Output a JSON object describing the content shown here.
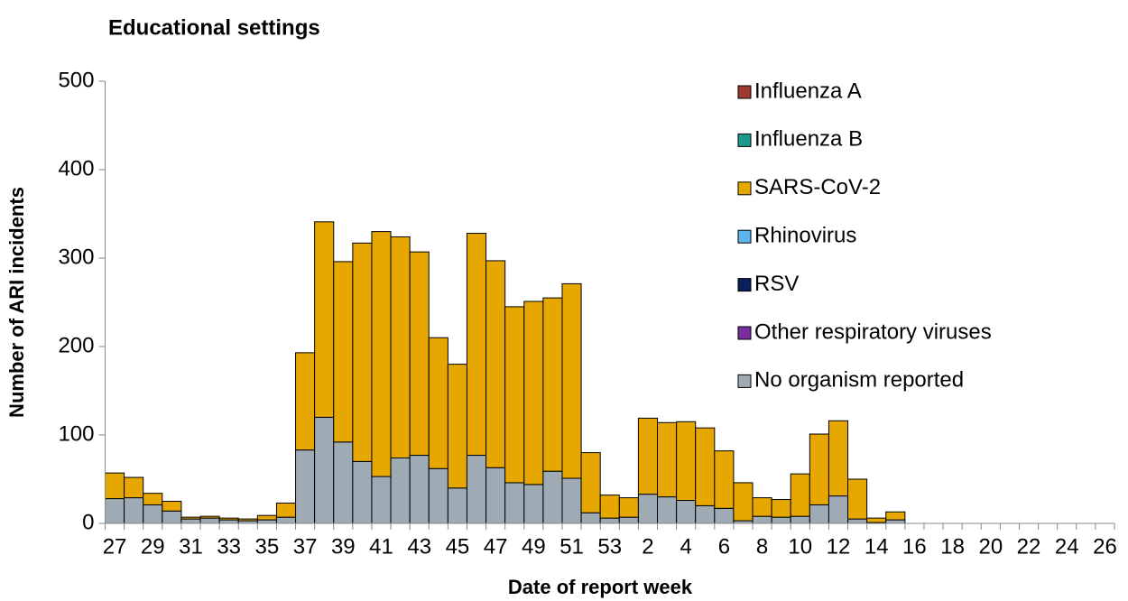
{
  "chart_data": {
    "type": "stacked_bar",
    "title": "Educational settings",
    "y_label": "Number of ARI incidents",
    "x_label": "Date of report week",
    "categories": [
      "27",
      null,
      "29",
      null,
      "31",
      null,
      "33",
      null,
      "35",
      null,
      "37",
      null,
      "39",
      null,
      "41",
      null,
      "43",
      null,
      "45",
      null,
      "47",
      null,
      "49",
      null,
      "51",
      null,
      "53",
      null,
      "2",
      null,
      "4",
      null,
      "6",
      null,
      "8",
      null,
      "10",
      null,
      "12",
      null,
      "14",
      null,
      "16",
      null,
      "18",
      null,
      "20",
      null,
      "22",
      null,
      "24",
      null,
      "26"
    ],
    "ylim": [
      0,
      500
    ],
    "yticks": [
      0,
      100,
      200,
      300,
      400,
      500
    ],
    "grid": false,
    "legend": "right",
    "series": [
      {
        "name": "Influenza A",
        "color": "#9e3a33",
        "values": [
          0,
          0,
          0,
          0,
          0,
          0,
          0,
          0,
          0,
          0,
          0,
          0,
          0,
          0,
          0,
          0,
          0,
          0,
          0,
          0,
          0,
          0,
          0,
          0,
          0,
          0,
          0,
          0,
          0,
          0,
          0,
          0,
          0,
          0,
          0,
          0,
          0,
          0,
          0,
          0,
          0,
          0,
          null,
          null,
          null,
          null,
          null,
          null,
          null,
          null,
          null,
          null,
          null
        ]
      },
      {
        "name": "Influenza B",
        "color": "#1c9a8c",
        "values": [
          0,
          0,
          0,
          0,
          0,
          0,
          0,
          0,
          0,
          0,
          0,
          0,
          0,
          0,
          0,
          0,
          0,
          0,
          0,
          0,
          0,
          0,
          0,
          0,
          0,
          0,
          0,
          0,
          0,
          0,
          0,
          0,
          0,
          0,
          0,
          0,
          0,
          0,
          0,
          0,
          0,
          0,
          null,
          null,
          null,
          null,
          null,
          null,
          null,
          null,
          null,
          null,
          null
        ]
      },
      {
        "name": "SARS-CoV-2",
        "color": "#e6a700",
        "values": [
          29,
          23,
          13,
          11,
          2,
          2,
          2,
          2,
          5,
          16,
          110,
          221,
          204,
          247,
          277,
          250,
          230,
          148,
          140,
          251,
          234,
          199,
          207,
          196,
          220,
          68,
          26,
          22,
          86,
          84,
          89,
          88,
          65,
          43,
          21,
          20,
          48,
          80,
          85,
          45,
          5,
          9,
          null,
          null,
          null,
          null,
          null,
          null,
          null,
          null,
          null,
          null,
          null
        ]
      },
      {
        "name": "Rhinovirus",
        "color": "#5bb4ea",
        "values": [
          0,
          0,
          0,
          0,
          0,
          0,
          0,
          0,
          0,
          0,
          0,
          0,
          0,
          0,
          0,
          0,
          0,
          0,
          0,
          0,
          0,
          0,
          0,
          0,
          0,
          0,
          0,
          0,
          0,
          0,
          0,
          0,
          0,
          0,
          0,
          0,
          0,
          0,
          0,
          0,
          0,
          0,
          null,
          null,
          null,
          null,
          null,
          null,
          null,
          null,
          null,
          null,
          null
        ]
      },
      {
        "name": "RSV",
        "color": "#0b1f5a",
        "values": [
          0,
          0,
          0,
          0,
          0,
          0,
          0,
          0,
          0,
          0,
          0,
          0,
          0,
          0,
          0,
          0,
          0,
          0,
          0,
          0,
          0,
          0,
          0,
          0,
          0,
          0,
          0,
          0,
          0,
          0,
          0,
          0,
          0,
          0,
          0,
          0,
          0,
          0,
          0,
          0,
          0,
          0,
          null,
          null,
          null,
          null,
          null,
          null,
          null,
          null,
          null,
          null,
          null
        ]
      },
      {
        "name": "Other respiratory viruses",
        "color": "#7a2ea0",
        "values": [
          0,
          0,
          0,
          0,
          0,
          0,
          0,
          0,
          0,
          0,
          0,
          0,
          0,
          0,
          0,
          0,
          0,
          0,
          0,
          0,
          0,
          0,
          0,
          0,
          0,
          0,
          0,
          0,
          0,
          0,
          0,
          0,
          0,
          0,
          0,
          0,
          0,
          0,
          0,
          0,
          0,
          0,
          null,
          null,
          null,
          null,
          null,
          null,
          null,
          null,
          null,
          null,
          null
        ]
      },
      {
        "name": "No organism reported",
        "color": "#9eabb5",
        "values": [
          28,
          29,
          21,
          14,
          5,
          6,
          4,
          3,
          4,
          7,
          83,
          120,
          92,
          70,
          53,
          74,
          77,
          62,
          40,
          77,
          63,
          46,
          44,
          59,
          51,
          12,
          6,
          7,
          33,
          30,
          26,
          20,
          17,
          3,
          8,
          7,
          8,
          21,
          31,
          5,
          1,
          4,
          null,
          null,
          null,
          null,
          null,
          null,
          null,
          null,
          null,
          null,
          null
        ]
      }
    ]
  }
}
